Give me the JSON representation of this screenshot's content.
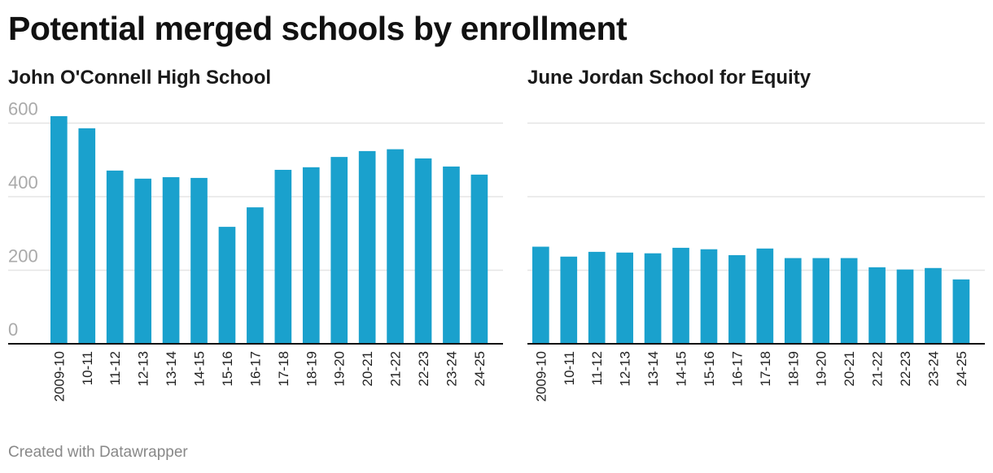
{
  "title": "Potential merged schools by enrollment",
  "footer": "Created with Datawrapper",
  "colors": {
    "bar": "#1aa1cd",
    "grid": "#e5e5e5",
    "axis": "#111111"
  },
  "chart_data": [
    {
      "type": "bar",
      "title": "John O'Connell High School",
      "categories": [
        "2009-10",
        "10-11",
        "11-12",
        "12-13",
        "13-14",
        "14-15",
        "15-16",
        "16-17",
        "17-18",
        "18-19",
        "19-20",
        "20-21",
        "21-22",
        "22-23",
        "23-24",
        "24-25"
      ],
      "values": [
        619,
        586,
        471,
        449,
        453,
        451,
        318,
        371,
        473,
        480,
        508,
        524,
        529,
        504,
        482,
        460
      ],
      "yticks": [
        0,
        200,
        400,
        600
      ],
      "ylim": [
        0,
        620
      ],
      "grid": true
    },
    {
      "type": "bar",
      "title": "June Jordan School for Equity",
      "categories": [
        "2009-10",
        "10-11",
        "11-12",
        "12-13",
        "13-14",
        "14-15",
        "15-16",
        "16-17",
        "17-18",
        "18-19",
        "19-20",
        "20-21",
        "21-22",
        "22-23",
        "23-24",
        "24-25"
      ],
      "values": [
        264,
        237,
        250,
        248,
        246,
        261,
        257,
        241,
        259,
        233,
        233,
        233,
        208,
        202,
        206,
        175
      ],
      "yticks": [
        0,
        200,
        400,
        600
      ],
      "ylim": [
        0,
        620
      ],
      "grid": true
    }
  ]
}
